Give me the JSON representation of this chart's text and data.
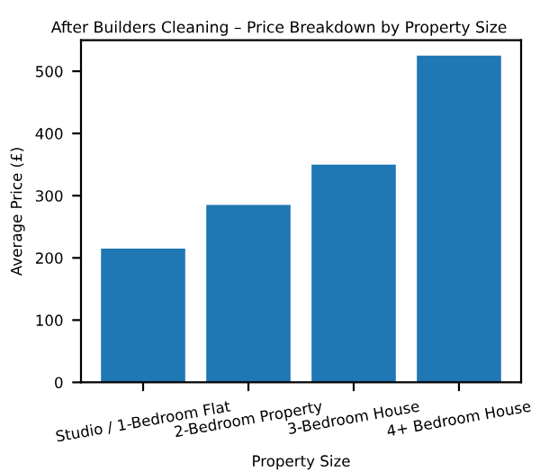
{
  "chart_data": {
    "type": "bar",
    "title": "After Builders Cleaning – Price Breakdown by Property Size",
    "xlabel": "Property Size",
    "ylabel": "Average Price (£)",
    "categories": [
      "Studio / 1-Bedroom Flat",
      "2-Bedroom Property",
      "3-Bedroom House",
      "4+ Bedroom House"
    ],
    "values": [
      215,
      285,
      350,
      525
    ],
    "color": "#1f77b4",
    "ylim": [
      0,
      550
    ],
    "yticks": [
      0,
      100,
      200,
      300,
      400,
      500
    ],
    "grid": false
  }
}
